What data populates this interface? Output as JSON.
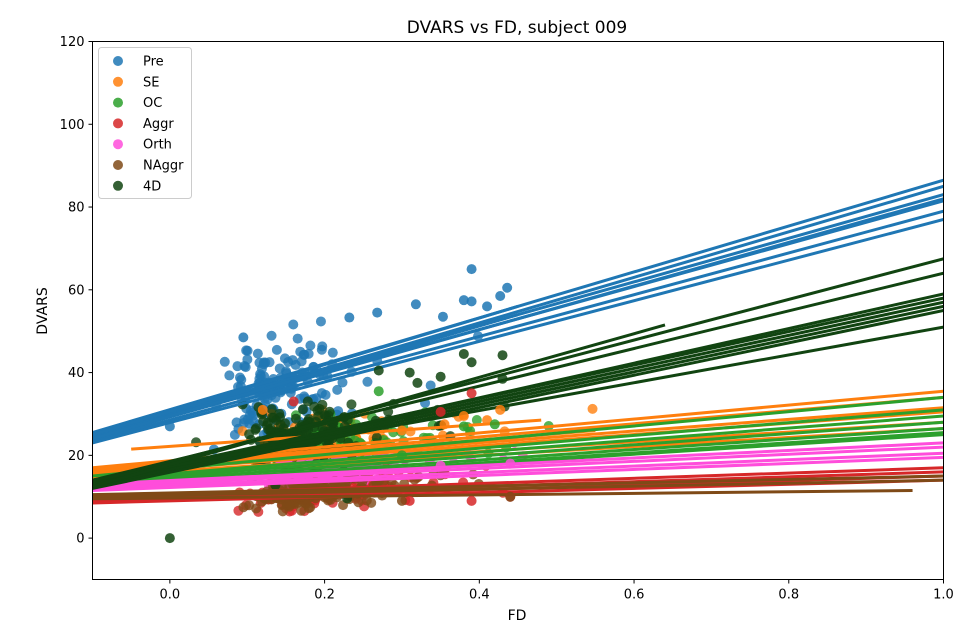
{
  "chart_data": {
    "type": "scatter",
    "title": "DVARS vs FD, subject 009",
    "xlabel": "FD",
    "ylabel": "DVARS",
    "xlim": [
      -0.1,
      1.0
    ],
    "ylim": [
      -10,
      120
    ],
    "xticks": [
      0.0,
      0.2,
      0.4,
      0.6,
      0.8,
      1.0
    ],
    "xtick_labels": [
      "0.0",
      "0.2",
      "0.4",
      "0.6",
      "0.8",
      "1.0"
    ],
    "yticks": [
      0,
      20,
      40,
      60,
      80,
      100,
      120
    ],
    "ytick_labels": [
      "0",
      "20",
      "40",
      "60",
      "80",
      "100",
      "120"
    ],
    "grid": false,
    "legend_position": "top-left",
    "series": [
      {
        "name": "Pre",
        "color": "#1f77b4",
        "cloud": {
          "x_center": 0.11,
          "x_spread": 0.09,
          "y_center": 35,
          "y_spread": 6
        },
        "sample_points": [
          [
            0.39,
            65
          ],
          [
            0.436,
            60.5
          ],
          [
            0.38,
            57.5
          ],
          [
            0.39,
            57.2
          ],
          [
            0.318,
            56.5
          ],
          [
            0.427,
            58.5
          ],
          [
            0.41,
            56
          ],
          [
            0.353,
            53.5
          ],
          [
            0.268,
            54.5
          ],
          [
            0.232,
            53.3
          ],
          [
            0.095,
            48.5
          ],
          [
            0.0,
            27
          ]
        ],
        "fit_lines": [
          {
            "x": [
              -0.1,
              1.0
            ],
            "y": [
              25.5,
              86.5
            ]
          },
          {
            "x": [
              -0.1,
              1.0
            ],
            "y": [
              24.5,
              85
            ]
          },
          {
            "x": [
              -0.1,
              1.0
            ],
            "y": [
              25,
              83
            ]
          },
          {
            "x": [
              -0.1,
              1.0
            ],
            "y": [
              24,
              82
            ]
          },
          {
            "x": [
              -0.1,
              1.0
            ],
            "y": [
              24.5,
              81.5
            ]
          },
          {
            "x": [
              -0.1,
              1.0
            ],
            "y": [
              23.5,
              79
            ]
          },
          {
            "x": [
              -0.1,
              1.0
            ],
            "y": [
              23,
              77
            ]
          },
          {
            "x": [
              -0.1,
              0.45
            ],
            "y": [
              25,
              56
            ]
          },
          {
            "x": [
              -0.1,
              0.45
            ],
            "y": [
              24,
              54
            ]
          }
        ]
      },
      {
        "name": "SE",
        "color": "#ff7f0e",
        "cloud": {
          "x_center": 0.15,
          "x_spread": 0.1,
          "y_center": 22,
          "y_spread": 3
        },
        "sample_points": [
          [
            0.427,
            31
          ],
          [
            0.38,
            29.5
          ],
          [
            0.41,
            28.5
          ],
          [
            0.355,
            27.5
          ],
          [
            0.12,
            31
          ],
          [
            0.3,
            26
          ]
        ],
        "fit_lines": [
          {
            "x": [
              -0.1,
              1.0
            ],
            "y": [
              17,
              35.5
            ]
          },
          {
            "x": [
              -0.1,
              1.0
            ],
            "y": [
              16.5,
              34
            ]
          },
          {
            "x": [
              -0.1,
              1.0
            ],
            "y": [
              16,
              31.5
            ]
          },
          {
            "x": [
              -0.1,
              1.0
            ],
            "y": [
              15.5,
              30.5
            ]
          },
          {
            "x": [
              -0.1,
              1.0
            ],
            "y": [
              15,
              28
            ]
          },
          {
            "x": [
              -0.1,
              1.0
            ],
            "y": [
              14.5,
              26.5
            ]
          },
          {
            "x": [
              -0.05,
              0.48
            ],
            "y": [
              21.5,
              28.5
            ]
          },
          {
            "x": [
              -0.1,
              0.55
            ],
            "y": [
              16,
              26
            ]
          }
        ]
      },
      {
        "name": "OC",
        "color": "#2ca02c",
        "cloud": {
          "x_center": 0.15,
          "x_spread": 0.1,
          "y_center": 20,
          "y_spread": 3
        },
        "sample_points": [
          [
            0.38,
            27
          ],
          [
            0.27,
            35.5
          ],
          [
            0.42,
            27.5
          ],
          [
            0.3,
            20
          ]
        ],
        "fit_lines": [
          {
            "x": [
              -0.1,
              1.0
            ],
            "y": [
              15,
              34
            ]
          },
          {
            "x": [
              -0.1,
              1.0
            ],
            "y": [
              14,
              31
            ]
          },
          {
            "x": [
              -0.1,
              1.0
            ],
            "y": [
              13.5,
              29.5
            ]
          },
          {
            "x": [
              -0.1,
              1.0
            ],
            "y": [
              13,
              28
            ]
          },
          {
            "x": [
              -0.1,
              1.0
            ],
            "y": [
              12.5,
              26.5
            ]
          },
          {
            "x": [
              -0.1,
              1.0
            ],
            "y": [
              12,
              25.5
            ]
          },
          {
            "x": [
              -0.1,
              1.0
            ],
            "y": [
              12,
              25
            ]
          }
        ]
      },
      {
        "name": "Aggr",
        "color": "#d62728",
        "cloud": {
          "x_center": 0.15,
          "x_spread": 0.1,
          "y_center": 11,
          "y_spread": 2
        },
        "sample_points": [
          [
            0.39,
            35
          ],
          [
            0.35,
            30.5
          ],
          [
            0.31,
            9
          ],
          [
            0.39,
            9
          ],
          [
            0.44,
            10
          ],
          [
            0.16,
            33
          ]
        ],
        "fit_lines": [
          {
            "x": [
              -0.1,
              1.0
            ],
            "y": [
              10,
              17
            ]
          },
          {
            "x": [
              -0.1,
              1.0
            ],
            "y": [
              9.5,
              16
            ]
          },
          {
            "x": [
              -0.1,
              1.0
            ],
            "y": [
              9,
              15
            ]
          },
          {
            "x": [
              -0.1,
              1.0
            ],
            "y": [
              8.5,
              14
            ]
          }
        ]
      },
      {
        "name": "Orth",
        "color": "#ff4ddb",
        "cloud": {
          "x_center": 0.15,
          "x_spread": 0.1,
          "y_center": 15,
          "y_spread": 2
        },
        "sample_points": [
          [
            0.44,
            18
          ],
          [
            0.35,
            17.5
          ]
        ],
        "fit_lines": [
          {
            "x": [
              -0.1,
              1.0
            ],
            "y": [
              13,
              23
            ]
          },
          {
            "x": [
              -0.1,
              1.0
            ],
            "y": [
              12.5,
              22
            ]
          },
          {
            "x": [
              -0.1,
              1.0
            ],
            "y": [
              12,
              20.5
            ]
          },
          {
            "x": [
              -0.1,
              1.0
            ],
            "y": [
              11.5,
              19.5
            ]
          }
        ]
      },
      {
        "name": "NAggr",
        "color": "#7f4a17",
        "cloud": {
          "x_center": 0.15,
          "x_spread": 0.1,
          "y_center": 10,
          "y_spread": 1.8
        },
        "sample_points": [
          [
            0.3,
            9
          ],
          [
            0.44,
            10
          ]
        ],
        "fit_lines": [
          {
            "x": [
              -0.1,
              1.0
            ],
            "y": [
              10.5,
              15
            ]
          },
          {
            "x": [
              -0.1,
              1.0
            ],
            "y": [
              10,
              14
            ]
          },
          {
            "x": [
              -0.1,
              0.96
            ],
            "y": [
              9.5,
              11.5
            ]
          }
        ]
      },
      {
        "name": "4D",
        "color": "#114411",
        "cloud": {
          "x_center": 0.13,
          "x_spread": 0.09,
          "y_center": 24,
          "y_spread": 4
        },
        "sample_points": [
          [
            0.38,
            44.5
          ],
          [
            0.43,
            44.2
          ],
          [
            0.39,
            42.5
          ],
          [
            0.31,
            40
          ],
          [
            0.27,
            40.5
          ],
          [
            0.32,
            37.5
          ],
          [
            0.35,
            39
          ],
          [
            0.43,
            38.5
          ],
          [
            0.0,
            0
          ]
        ],
        "fit_lines": [
          {
            "x": [
              -0.1,
              1.0
            ],
            "y": [
              13.5,
              67.5
            ]
          },
          {
            "x": [
              -0.1,
              1.0
            ],
            "y": [
              14,
              64
            ]
          },
          {
            "x": [
              -0.1,
              1.0
            ],
            "y": [
              13,
              59
            ]
          },
          {
            "x": [
              -0.1,
              1.0
            ],
            "y": [
              13.5,
              58
            ]
          },
          {
            "x": [
              -0.1,
              1.0
            ],
            "y": [
              13,
              57
            ]
          },
          {
            "x": [
              -0.1,
              1.0
            ],
            "y": [
              12.5,
              56
            ]
          },
          {
            "x": [
              -0.1,
              1.0
            ],
            "y": [
              12,
              55
            ]
          },
          {
            "x": [
              -0.1,
              1.0
            ],
            "y": [
              14,
              51
            ]
          },
          {
            "x": [
              -0.1,
              0.64
            ],
            "y": [
              12.5,
              51.5
            ]
          }
        ]
      }
    ]
  }
}
